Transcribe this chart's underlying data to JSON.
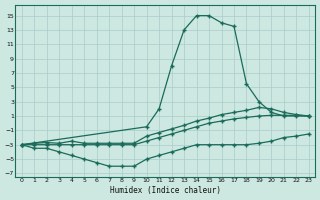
{
  "xlabel": "Humidex (Indice chaleur)",
  "background_color": "#cce8e0",
  "grid_color": "#aacccc",
  "line_color": "#1a6b5a",
  "xlim": [
    -0.5,
    23.5
  ],
  "ylim": [
    -7.5,
    16.5
  ],
  "xticks": [
    0,
    1,
    2,
    3,
    4,
    5,
    6,
    7,
    8,
    9,
    10,
    11,
    12,
    13,
    14,
    15,
    16,
    17,
    18,
    19,
    20,
    21,
    22,
    23
  ],
  "yticks": [
    -7,
    -5,
    -3,
    -1,
    1,
    3,
    5,
    7,
    9,
    11,
    13,
    15
  ],
  "series_spike_x": [
    0,
    10,
    11,
    12,
    13,
    14,
    15,
    16,
    17,
    18,
    19,
    20,
    21,
    22,
    23
  ],
  "series_spike_y": [
    -3,
    -0.5,
    2,
    8,
    13,
    15,
    15,
    14,
    13.5,
    5.5,
    3,
    1.5,
    1,
    1,
    1
  ],
  "series_upper_x": [
    0,
    1,
    2,
    3,
    4,
    5,
    6,
    7,
    8,
    9,
    10,
    11,
    12,
    13,
    14,
    15,
    16,
    17,
    18,
    19,
    20,
    21,
    22,
    23
  ],
  "series_upper_y": [
    -3,
    -2.8,
    -2.7,
    -2.8,
    -2.5,
    -2.8,
    -2.8,
    -2.8,
    -2.8,
    -2.8,
    -1.8,
    -1.3,
    -0.8,
    -0.3,
    0.3,
    0.7,
    1.2,
    1.5,
    1.8,
    2.2,
    2.0,
    1.5,
    1.2,
    1.0
  ],
  "series_mid_x": [
    0,
    1,
    2,
    3,
    4,
    5,
    6,
    7,
    8,
    9,
    10,
    11,
    12,
    13,
    14,
    15,
    16,
    17,
    18,
    19,
    20,
    21,
    22,
    23
  ],
  "series_mid_y": [
    -3,
    -3,
    -3,
    -3,
    -3,
    -3,
    -3,
    -3,
    -3,
    -3,
    -2.5,
    -2,
    -1.5,
    -1,
    -0.5,
    0,
    0.3,
    0.6,
    0.8,
    1.0,
    1.1,
    1.1,
    1.1,
    1.0
  ],
  "series_lower_x": [
    0,
    1,
    2,
    3,
    4,
    5,
    6,
    7,
    8,
    9,
    10,
    11,
    12,
    13,
    14,
    15,
    16,
    17,
    18,
    19,
    20,
    21,
    22,
    23
  ],
  "series_lower_y": [
    -3,
    -3.5,
    -3.5,
    -4,
    -4.5,
    -5,
    -5.5,
    -6,
    -6,
    -6,
    -5,
    -4.5,
    -4,
    -3.5,
    -3,
    -3,
    -3,
    -3,
    -3,
    -2.8,
    -2.5,
    -2,
    -1.8,
    -1.5
  ]
}
